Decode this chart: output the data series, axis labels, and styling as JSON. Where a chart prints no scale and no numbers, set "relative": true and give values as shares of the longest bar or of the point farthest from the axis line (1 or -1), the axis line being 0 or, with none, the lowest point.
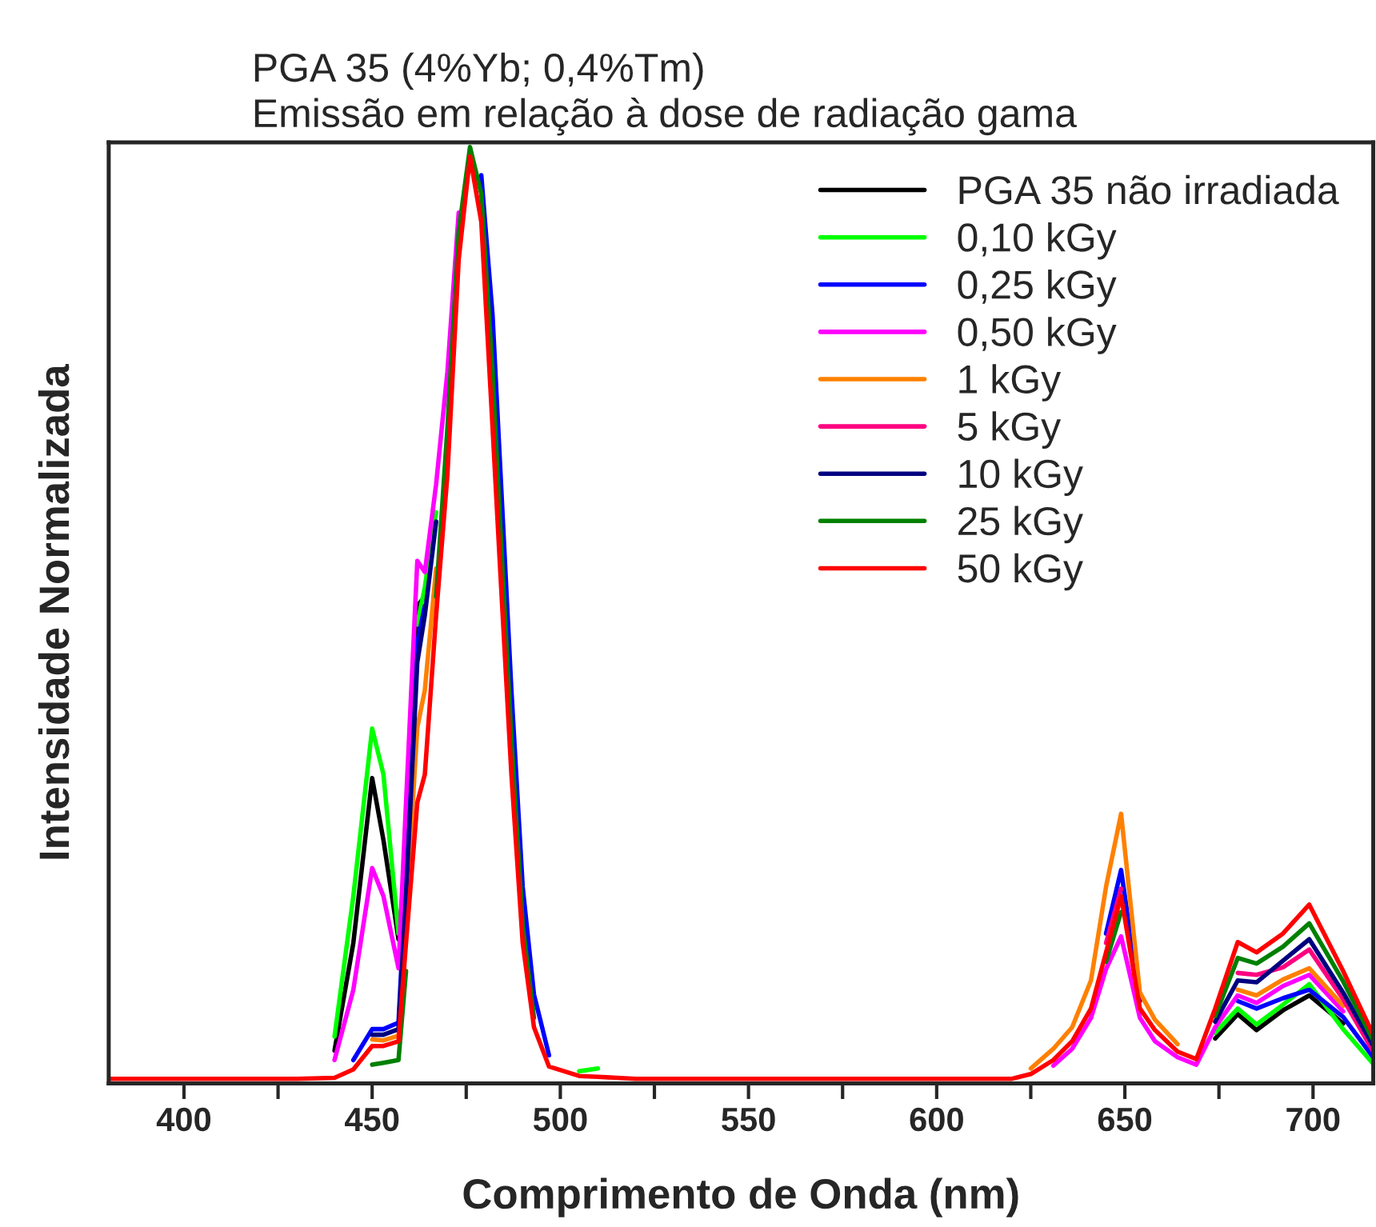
{
  "chart_data": {
    "type": "line",
    "title": "PGA 35 (4%Yb; 0,4%Tm)",
    "subtitle": "Emissão em relação à dose de radiação gama",
    "xlabel": "Comprimento de Onda (nm)",
    "ylabel": "Intensidade Normalizada",
    "relative": true,
    "legend": "top right",
    "grid": false,
    "marker": "none",
    "line_style": "solid",
    "xlim": [
      380,
      716
    ],
    "xticks": [
      400,
      {
        "value": 425,
        "label": null
      },
      450,
      {
        "value": 475,
        "label": null
      },
      500,
      {
        "value": 525,
        "label": null
      },
      550,
      {
        "value": 575,
        "label": null
      },
      600,
      {
        "value": 625,
        "label": null
      },
      650,
      {
        "value": 675,
        "label": null
      },
      700
    ],
    "x": [
      380,
      430,
      440,
      445,
      450,
      453,
      457,
      459,
      462,
      464,
      467,
      470,
      473,
      476,
      479,
      482,
      484,
      487,
      490,
      493,
      497,
      505,
      510,
      520,
      600,
      620,
      625,
      631,
      636,
      641,
      645,
      649,
      654,
      658,
      664,
      669,
      674,
      680,
      685,
      692,
      699,
      708,
      716
    ],
    "series": [
      {
        "name": "PGA 35 não irradiada",
        "color": "#000000",
        "values": [
          null,
          null,
          0.035,
          0.15,
          0.326,
          0.26,
          0.154,
          0.24,
          0.51,
          0.52,
          null,
          null,
          null,
          null,
          null,
          null,
          null,
          null,
          null,
          null,
          null,
          null,
          null,
          null,
          null,
          null,
          null,
          null,
          null,
          null,
          null,
          null,
          null,
          null,
          null,
          null,
          0.048,
          0.074,
          0.057,
          0.078,
          0.094,
          0.064,
          null
        ]
      },
      {
        "name": "0,10 kGy",
        "color": "#00ff00",
        "values": [
          null,
          null,
          0.05,
          0.2,
          0.379,
          0.33,
          0.16,
          null,
          0.49,
          0.53,
          0.61,
          null,
          null,
          null,
          null,
          null,
          null,
          null,
          null,
          null,
          null,
          0.013,
          0.016,
          null,
          null,
          null,
          null,
          null,
          null,
          null,
          null,
          null,
          null,
          null,
          null,
          null,
          0.054,
          0.08,
          0.063,
          0.084,
          0.106,
          0.058,
          0.021
        ]
      },
      {
        "name": "0,25 kGy",
        "color": "#0000ff",
        "values": [
          null,
          null,
          null,
          0.025,
          0.058,
          0.058,
          0.065,
          0.22,
          0.47,
          0.51,
          null,
          null,
          null,
          null,
          0.97,
          0.82,
          0.66,
          0.42,
          0.21,
          0.095,
          0.03,
          null,
          null,
          null,
          null,
          null,
          null,
          null,
          null,
          null,
          0.16,
          0.228,
          0.088,
          null,
          null,
          null,
          null,
          0.088,
          0.08,
          0.091,
          0.1,
          0.071,
          0.028
        ]
      },
      {
        "name": "0,50 kGy",
        "color": "#ff00ff",
        "values": [
          null,
          null,
          0.025,
          0.1,
          0.23,
          0.2,
          0.123,
          0.3,
          0.558,
          0.546,
          0.64,
          0.76,
          0.93,
          null,
          null,
          null,
          null,
          null,
          null,
          null,
          null,
          null,
          null,
          null,
          null,
          null,
          null,
          0.019,
          0.037,
          0.07,
          0.122,
          0.157,
          0.07,
          0.045,
          0.028,
          0.02,
          0.06,
          0.094,
          0.086,
          0.104,
          0.116,
          0.077,
          null
        ]
      },
      {
        "name": "1 kGy",
        "color": "#ff8000",
        "values": [
          null,
          null,
          null,
          null,
          0.047,
          0.046,
          0.051,
          0.18,
          0.38,
          0.42,
          0.55,
          null,
          null,
          null,
          null,
          null,
          null,
          null,
          null,
          null,
          null,
          null,
          null,
          null,
          null,
          null,
          0.016,
          0.037,
          0.06,
          0.11,
          0.21,
          0.288,
          0.097,
          0.068,
          0.042,
          null,
          null,
          0.1,
          0.094,
          0.111,
          0.123,
          0.083,
          null
        ]
      },
      {
        "name": "5 kGy",
        "color": "#ff0080",
        "values": [
          null,
          null,
          null,
          null,
          null,
          null,
          null,
          null,
          null,
          null,
          null,
          null,
          null,
          null,
          null,
          null,
          null,
          null,
          null,
          null,
          null,
          null,
          null,
          null,
          null,
          null,
          null,
          null,
          null,
          null,
          0.15,
          0.208,
          null,
          null,
          null,
          null,
          null,
          0.118,
          0.116,
          0.124,
          0.143,
          0.09,
          0.034
        ]
      },
      {
        "name": "10 kGy",
        "color": "#000080",
        "values": [
          null,
          null,
          null,
          null,
          0.052,
          0.052,
          0.058,
          0.2,
          0.45,
          0.5,
          0.6,
          null,
          null,
          null,
          null,
          null,
          null,
          null,
          null,
          null,
          null,
          null,
          null,
          null,
          null,
          null,
          null,
          null,
          null,
          null,
          null,
          null,
          null,
          null,
          null,
          null,
          0.066,
          0.11,
          0.108,
          0.131,
          0.154,
          0.097,
          0.04
        ]
      },
      {
        "name": "25 kGy",
        "color": "#008000",
        "values": [
          null,
          null,
          null,
          null,
          0.02,
          0.022,
          0.025,
          0.12,
          null,
          null,
          0.52,
          0.7,
          0.91,
          1.0,
          0.95,
          0.76,
          0.6,
          0.37,
          0.17,
          0.07,
          null,
          null,
          null,
          null,
          null,
          null,
          null,
          null,
          null,
          null,
          0.13,
          0.183,
          null,
          null,
          null,
          null,
          0.072,
          0.134,
          0.128,
          0.146,
          0.171,
          0.109,
          0.046
        ]
      },
      {
        "name": "50 kGy",
        "color": "#ff0000",
        "values": [
          0.005,
          0.005,
          0.006,
          0.015,
          0.04,
          0.04,
          0.045,
          0.15,
          0.3,
          0.33,
          0.5,
          0.65,
          0.88,
          0.99,
          0.92,
          0.7,
          0.55,
          0.33,
          0.15,
          0.06,
          0.018,
          0.008,
          0.007,
          0.005,
          0.005,
          0.005,
          0.01,
          0.025,
          0.045,
          0.08,
          0.14,
          0.2,
          0.08,
          0.057,
          0.034,
          0.026,
          0.08,
          0.151,
          0.14,
          0.16,
          0.191,
          0.12,
          0.052
        ]
      }
    ]
  }
}
